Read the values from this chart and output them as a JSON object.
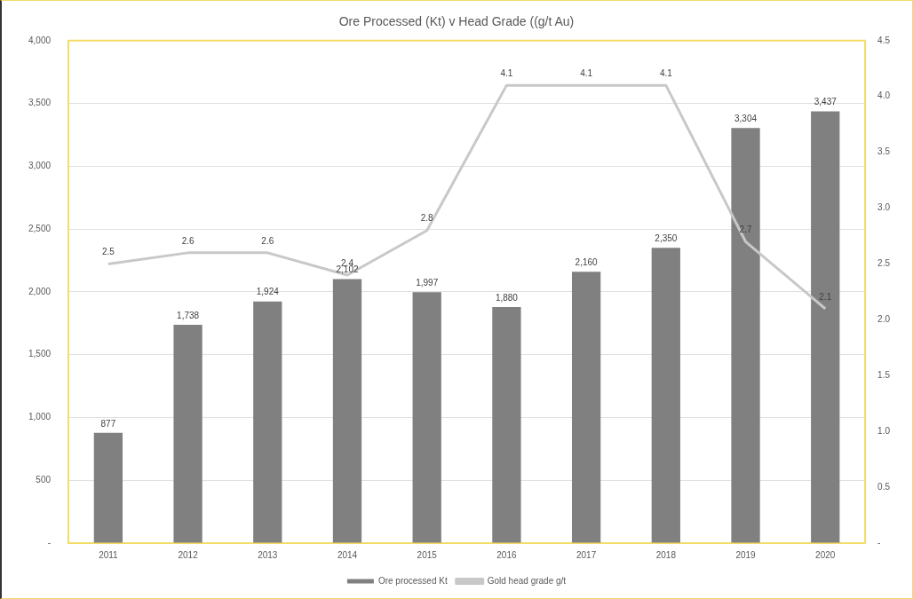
{
  "chart_data": {
    "type": "bar",
    "title": "Ore Processed (Kt) v Head Grade ((g/t Au)",
    "categories": [
      "2011",
      "2012",
      "2013",
      "2014",
      "2015",
      "2016",
      "2017",
      "2018",
      "2019",
      "2020"
    ],
    "series": [
      {
        "name": "Ore processed Kt",
        "color": "#808080",
        "values": [
          877,
          1738,
          1924,
          2102,
          1997,
          1880,
          2160,
          2350,
          3304,
          3437
        ],
        "value_labels": [
          "877",
          "1,738",
          "1,924",
          "2,102",
          "1,997",
          "1,880",
          "2,160",
          "2,350",
          "3,304",
          "3,437"
        ]
      },
      {
        "name": "Gold head grade g/t",
        "type": "line",
        "axis": "y2",
        "color": "#c8c8c8",
        "values": [
          2.5,
          2.6,
          2.6,
          2.4,
          2.8,
          4.1,
          4.1,
          4.1,
          2.7,
          2.1
        ],
        "value_labels": [
          "2.5",
          "2.6",
          "2.6",
          "2.4",
          "2.8",
          "4.1",
          "4.1",
          "4.1",
          "2.7",
          "2.1"
        ]
      }
    ],
    "ylim": [
      0,
      4000
    ],
    "yticks": [
      {
        "value": 0,
        "label": "-"
      },
      {
        "value": 500,
        "label": "500"
      },
      {
        "value": 1000,
        "label": "1,000"
      },
      {
        "value": 1500,
        "label": "1,500"
      },
      {
        "value": 2000,
        "label": "2,000"
      },
      {
        "value": 2500,
        "label": "2,500"
      },
      {
        "value": 3000,
        "label": "3,000"
      },
      {
        "value": 3500,
        "label": "3,500"
      },
      {
        "value": 4000,
        "label": "4,000"
      }
    ],
    "y2lim": [
      0,
      4.5
    ],
    "y2ticks": [
      {
        "value": 0,
        "label": "-"
      },
      {
        "value": 0.5,
        "label": "0.5"
      },
      {
        "value": 1,
        "label": "1.0"
      },
      {
        "value": 1.5,
        "label": "1.5"
      },
      {
        "value": 2,
        "label": "2.0"
      },
      {
        "value": 2.5,
        "label": "2.5"
      },
      {
        "value": 3,
        "label": "3.0"
      },
      {
        "value": 3.5,
        "label": "3.5"
      },
      {
        "value": 4,
        "label": "4.0"
      },
      {
        "value": 4.5,
        "label": "4.5"
      }
    ],
    "grid": "y",
    "legend": "bottom",
    "marker": "none"
  }
}
